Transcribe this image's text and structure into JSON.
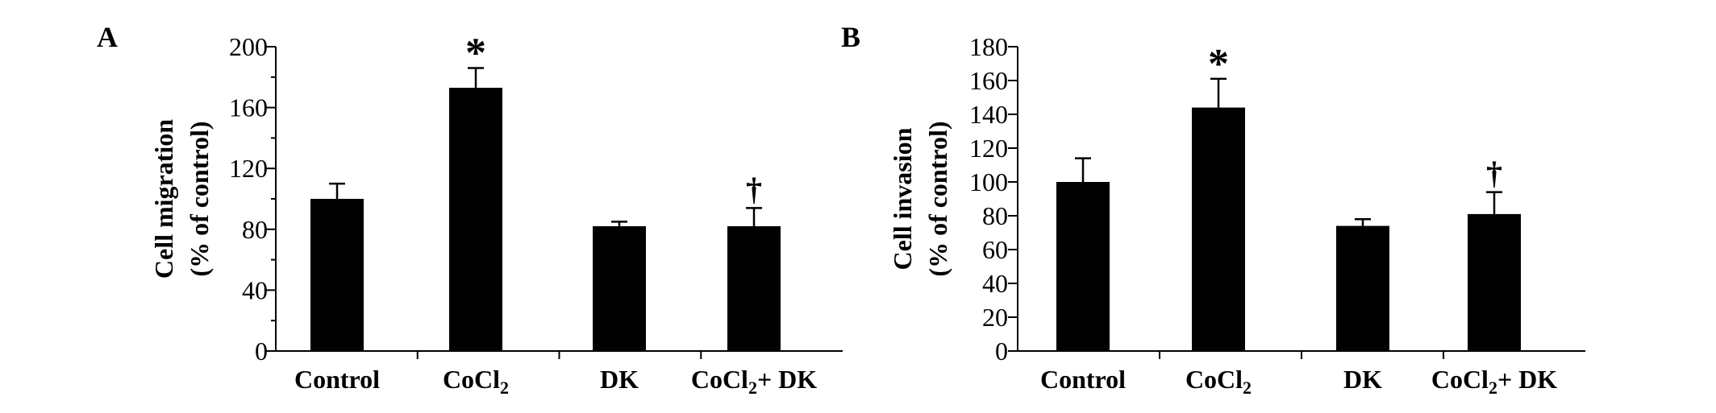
{
  "chart_data": [
    {
      "type": "bar",
      "panel": "A",
      "ylabel": [
        "Cell migration",
        "(% of control)"
      ],
      "xlabel": "",
      "categories": [
        "Control",
        "CoCl2",
        "DK",
        "CoCl2+ DK"
      ],
      "category_display": [
        {
          "main": "Control",
          "sub": "",
          "tail": ""
        },
        {
          "main": "CoCl",
          "sub": "2",
          "tail": ""
        },
        {
          "main": "DK",
          "sub": "",
          "tail": ""
        },
        {
          "main": "CoCl",
          "sub": "2",
          "tail": "+ DK"
        }
      ],
      "values": [
        100,
        173,
        82,
        82
      ],
      "errors": [
        10,
        13,
        3,
        12
      ],
      "annotations": [
        "",
        "*",
        "",
        "†"
      ],
      "ylim": [
        0,
        200
      ],
      "yticks": [
        0,
        40,
        80,
        120,
        160,
        200
      ],
      "minor_step": 20,
      "grid": false,
      "bar_color": "#000000"
    },
    {
      "type": "bar",
      "panel": "B",
      "ylabel": [
        "Cell invasion",
        "(% of control)"
      ],
      "xlabel": "",
      "categories": [
        "Control",
        "CoCl2",
        "DK",
        "CoCl2+ DK"
      ],
      "category_display": [
        {
          "main": "Control",
          "sub": "",
          "tail": ""
        },
        {
          "main": "CoCl",
          "sub": "2",
          "tail": ""
        },
        {
          "main": "DK",
          "sub": "",
          "tail": ""
        },
        {
          "main": "CoCl",
          "sub": "2",
          "tail": "+ DK"
        }
      ],
      "values": [
        100,
        144,
        74,
        81
      ],
      "errors": [
        14,
        17,
        4,
        13
      ],
      "annotations": [
        "",
        "*",
        "",
        "†"
      ],
      "ylim": [
        0,
        180
      ],
      "yticks": [
        0,
        20,
        40,
        60,
        80,
        100,
        120,
        140,
        160,
        180
      ],
      "minor_step": 0,
      "grid": false,
      "bar_color": "#000000"
    }
  ]
}
